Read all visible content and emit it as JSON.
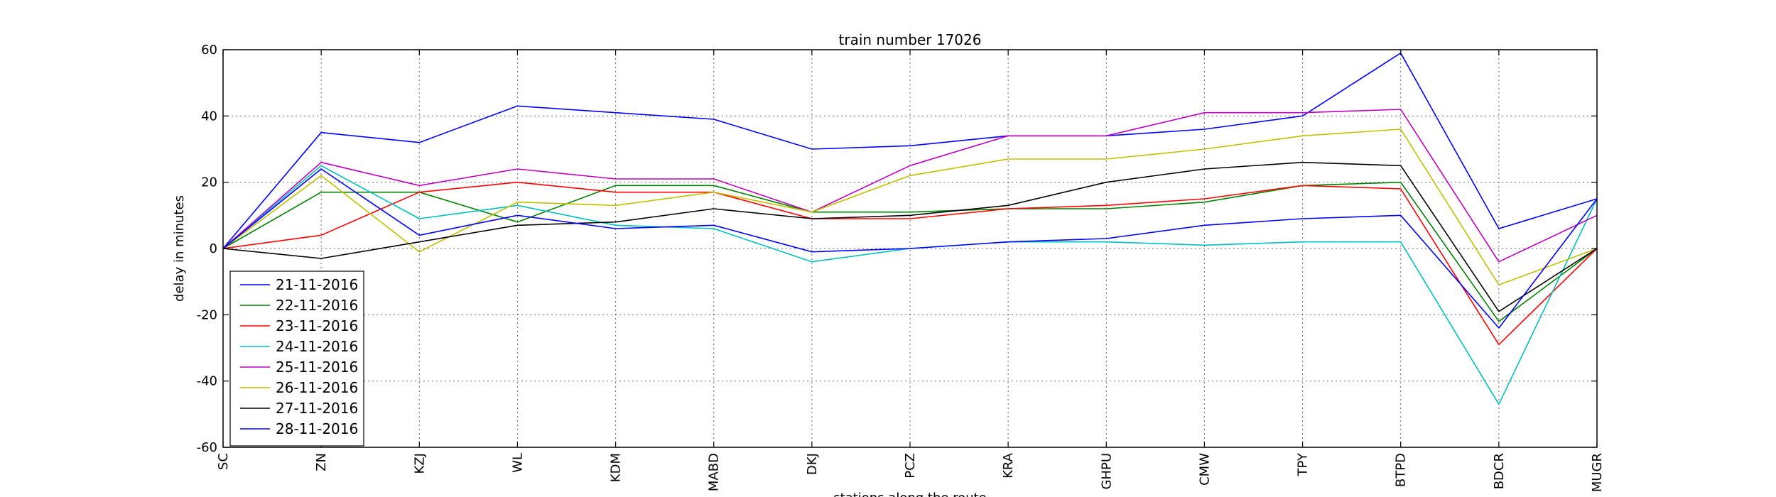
{
  "chart_data": {
    "type": "line",
    "title": "train number 17026",
    "xlabel": "stations along the route",
    "ylabel": "delay in minutes",
    "ylim": [
      -60,
      60
    ],
    "yticks": [
      -60,
      -40,
      -20,
      0,
      20,
      40,
      60
    ],
    "categories": [
      "SC",
      "ZN",
      "KZJ",
      "WL",
      "KDM",
      "MABD",
      "DKJ",
      "PCZ",
      "KRA",
      "GHPU",
      "CMW",
      "TPY",
      "BTPD",
      "BDCR",
      "MUGR"
    ],
    "grid": true,
    "legend_position": "lower-left",
    "series": [
      {
        "name": "21-11-2016",
        "color": "#0000ff",
        "values": [
          0,
          35,
          32,
          43,
          41,
          39,
          30,
          31,
          34,
          34,
          36,
          40,
          59,
          6,
          15
        ]
      },
      {
        "name": "22-11-2016",
        "color": "#008000",
        "values": [
          0,
          17,
          17,
          8,
          19,
          19,
          11,
          11,
          12,
          12,
          14,
          19,
          20,
          -22,
          0
        ]
      },
      {
        "name": "23-11-2016",
        "color": "#ff0000",
        "values": [
          0,
          4,
          17,
          20,
          17,
          17,
          9,
          9,
          12,
          13,
          15,
          19,
          18,
          -29,
          0
        ]
      },
      {
        "name": "24-11-2016",
        "color": "#00bfbf",
        "values": [
          0,
          25,
          9,
          13,
          7,
          6,
          -4,
          0,
          2,
          2,
          1,
          2,
          2,
          -47,
          15
        ]
      },
      {
        "name": "25-11-2016",
        "color": "#bf00bf",
        "values": [
          0,
          26,
          19,
          24,
          21,
          21,
          11,
          25,
          34,
          34,
          41,
          41,
          42,
          -4,
          10
        ]
      },
      {
        "name": "26-11-2016",
        "color": "#bfbf00",
        "values": [
          0,
          22,
          -1,
          14,
          13,
          17,
          11,
          22,
          27,
          27,
          30,
          34,
          36,
          -11,
          0
        ]
      },
      {
        "name": "27-11-2016",
        "color": "#000000",
        "values": [
          0,
          -3,
          2,
          7,
          8,
          12,
          9,
          10,
          13,
          20,
          24,
          26,
          25,
          -19,
          0
        ]
      },
      {
        "name": "28-11-2016",
        "color": "#0000ff",
        "values": [
          0,
          24,
          4,
          10,
          6,
          7,
          -1,
          0,
          2,
          3,
          7,
          9,
          10,
          -24,
          15
        ]
      }
    ]
  }
}
